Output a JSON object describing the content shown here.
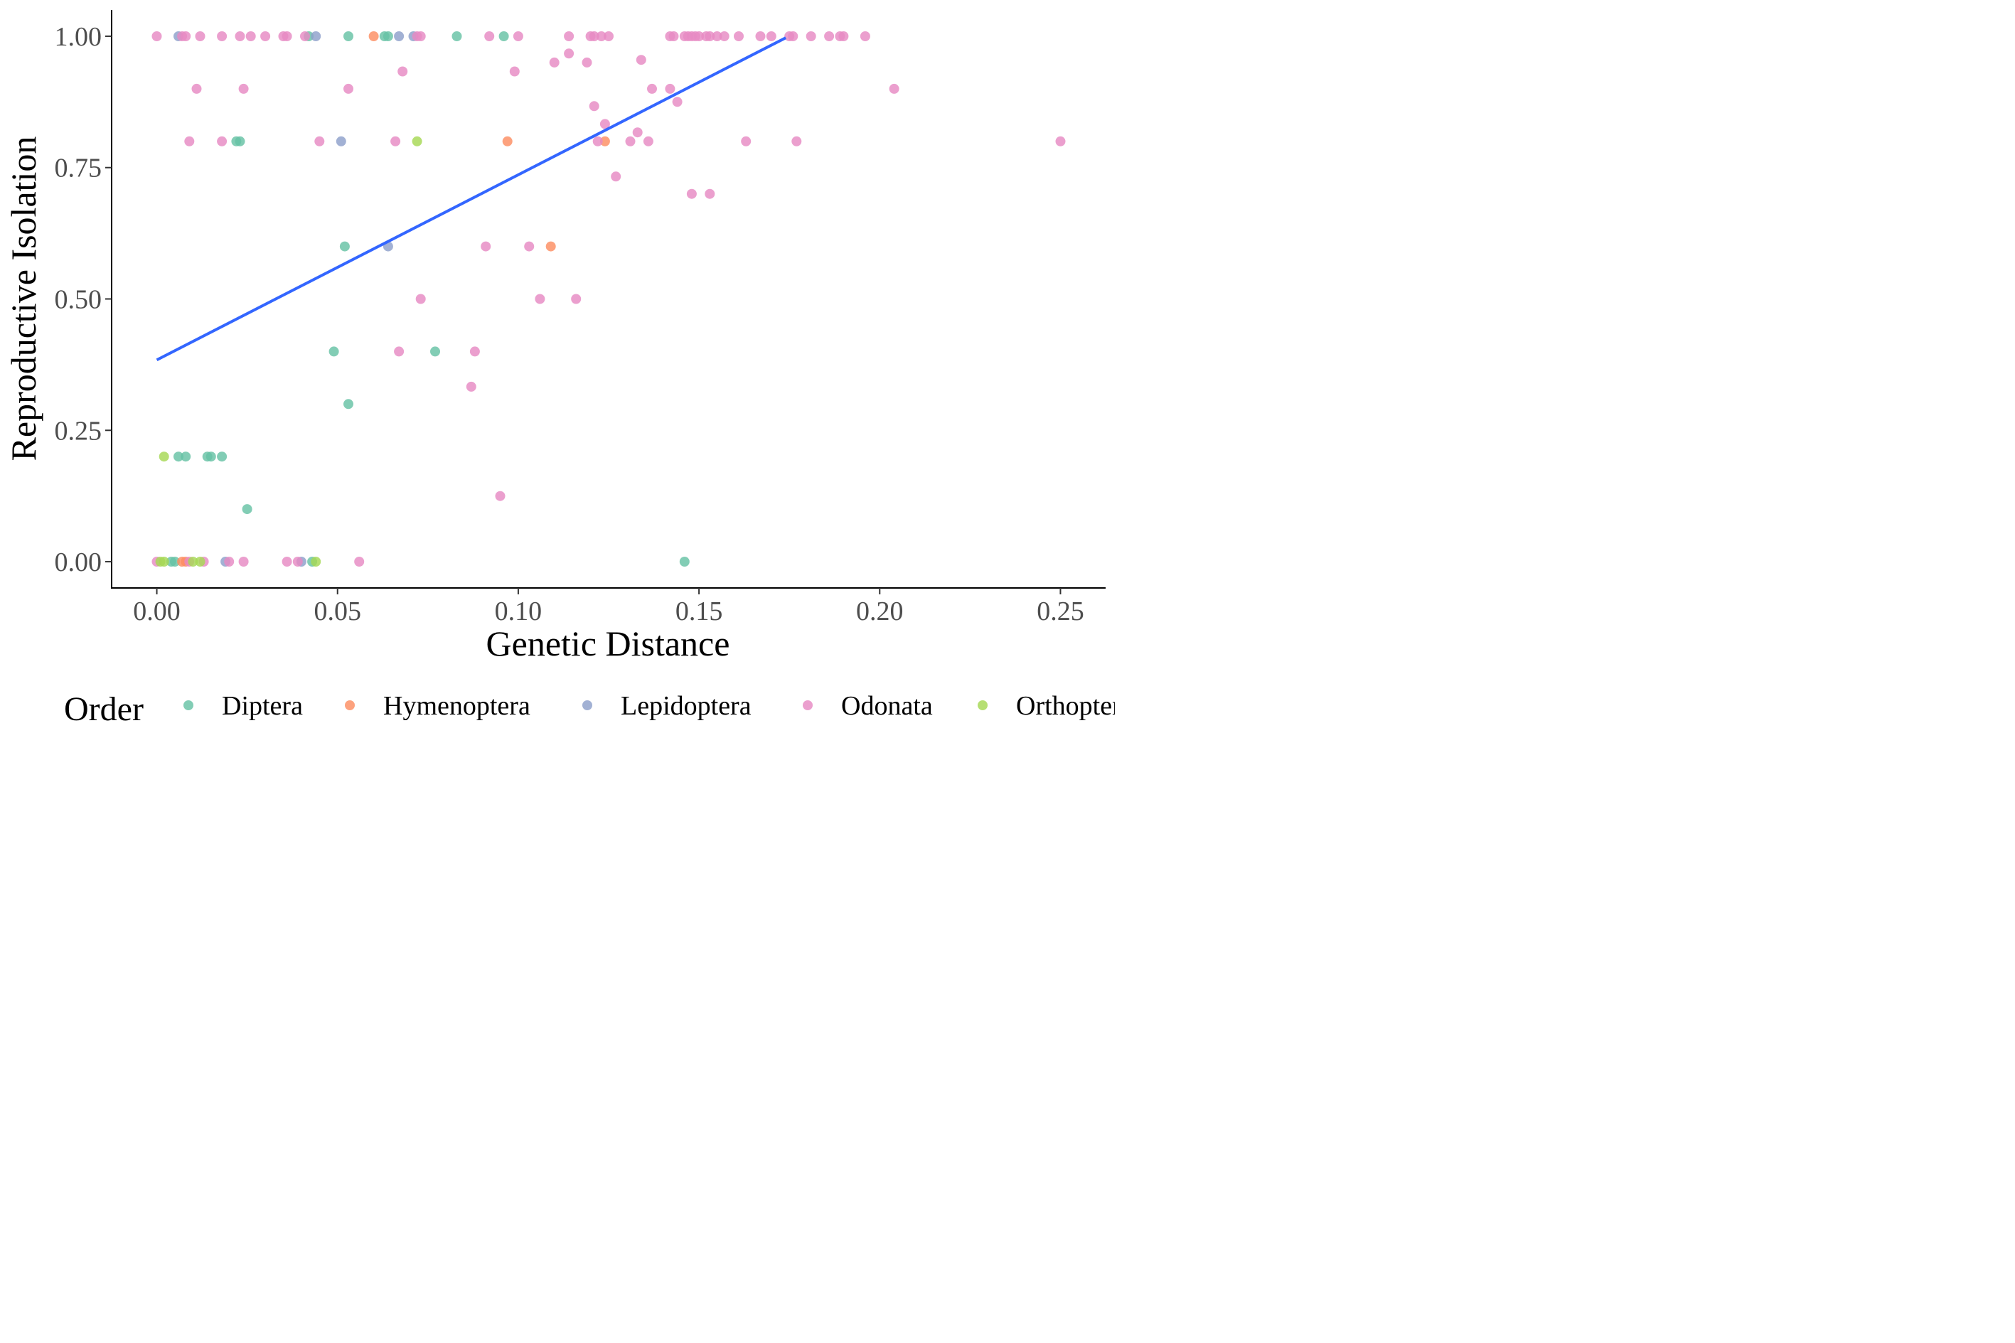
{
  "chart_data": {
    "type": "scatter",
    "xlabel": "Genetic Distance",
    "ylabel": "Reproductive Isolation",
    "xlim": [
      -0.0125,
      0.2625
    ],
    "ylim": [
      -0.05,
      1.05
    ],
    "x_ticks": [
      0.0,
      0.05,
      0.1,
      0.15,
      0.2,
      0.25
    ],
    "x_tick_labels": [
      "0.00",
      "0.05",
      "0.10",
      "0.15",
      "0.20",
      "0.25"
    ],
    "y_ticks": [
      0.0,
      0.25,
      0.5,
      0.75,
      1.0
    ],
    "y_tick_labels": [
      "0.00",
      "0.25",
      "0.50",
      "0.75",
      "1.00"
    ],
    "grid": false,
    "legend": {
      "title": "Order",
      "position": "bottom",
      "entries": [
        {
          "name": "Diptera",
          "color": "#66c2a5"
        },
        {
          "name": "Hymenoptera",
          "color": "#fc8d62"
        },
        {
          "name": "Lepidoptera",
          "color": "#8da0cb"
        },
        {
          "name": "Odonata",
          "color": "#e78ac3"
        },
        {
          "name": "Orthoptera",
          "color": "#a6d854"
        }
      ]
    },
    "trend_line": {
      "color": "#3366ff",
      "x": [
        0.0,
        0.174
      ],
      "y": [
        0.384,
        0.997
      ]
    },
    "series": [
      {
        "name": "Diptera",
        "color": "#66c2a5",
        "points": [
          [
            0.042,
            1.0
          ],
          [
            0.053,
            1.0
          ],
          [
            0.063,
            1.0
          ],
          [
            0.064,
            1.0
          ],
          [
            0.083,
            1.0
          ],
          [
            0.096,
            1.0
          ],
          [
            0.022,
            0.8
          ],
          [
            0.023,
            0.8
          ],
          [
            0.052,
            0.6
          ],
          [
            0.049,
            0.4
          ],
          [
            0.077,
            0.4
          ],
          [
            0.053,
            0.3
          ],
          [
            0.006,
            0.2
          ],
          [
            0.008,
            0.2
          ],
          [
            0.014,
            0.2
          ],
          [
            0.015,
            0.2
          ],
          [
            0.018,
            0.2
          ],
          [
            0.025,
            0.1
          ],
          [
            0.004,
            0.0
          ],
          [
            0.005,
            0.0
          ],
          [
            0.043,
            0.0
          ],
          [
            0.146,
            0.0
          ]
        ]
      },
      {
        "name": "Hymenoptera",
        "color": "#fc8d62",
        "points": [
          [
            0.06,
            1.0
          ],
          [
            0.097,
            0.8
          ],
          [
            0.124,
            0.8
          ],
          [
            0.109,
            0.6
          ],
          [
            0.007,
            0.0
          ],
          [
            0.008,
            0.0
          ]
        ]
      },
      {
        "name": "Lepidoptera",
        "color": "#8da0cb",
        "points": [
          [
            0.006,
            1.0
          ],
          [
            0.044,
            1.0
          ],
          [
            0.067,
            1.0
          ],
          [
            0.071,
            1.0
          ],
          [
            0.051,
            0.8
          ],
          [
            0.064,
            0.6
          ],
          [
            0.019,
            0.0
          ],
          [
            0.04,
            0.0
          ]
        ]
      },
      {
        "name": "Odonata",
        "color": "#e78ac3",
        "points": [
          [
            0.0,
            1.0
          ],
          [
            0.007,
            1.0
          ],
          [
            0.008,
            1.0
          ],
          [
            0.012,
            1.0
          ],
          [
            0.018,
            1.0
          ],
          [
            0.023,
            1.0
          ],
          [
            0.026,
            1.0
          ],
          [
            0.03,
            1.0
          ],
          [
            0.035,
            1.0
          ],
          [
            0.036,
            1.0
          ],
          [
            0.041,
            1.0
          ],
          [
            0.072,
            1.0
          ],
          [
            0.073,
            1.0
          ],
          [
            0.092,
            1.0
          ],
          [
            0.1,
            1.0
          ],
          [
            0.114,
            1.0
          ],
          [
            0.12,
            1.0
          ],
          [
            0.121,
            1.0
          ],
          [
            0.123,
            1.0
          ],
          [
            0.125,
            1.0
          ],
          [
            0.142,
            1.0
          ],
          [
            0.143,
            1.0
          ],
          [
            0.146,
            1.0
          ],
          [
            0.147,
            1.0
          ],
          [
            0.148,
            1.0
          ],
          [
            0.149,
            1.0
          ],
          [
            0.15,
            1.0
          ],
          [
            0.152,
            1.0
          ],
          [
            0.153,
            1.0
          ],
          [
            0.155,
            1.0
          ],
          [
            0.157,
            1.0
          ],
          [
            0.161,
            1.0
          ],
          [
            0.167,
            1.0
          ],
          [
            0.17,
            1.0
          ],
          [
            0.175,
            1.0
          ],
          [
            0.176,
            1.0
          ],
          [
            0.181,
            1.0
          ],
          [
            0.186,
            1.0
          ],
          [
            0.189,
            1.0
          ],
          [
            0.19,
            1.0
          ],
          [
            0.196,
            1.0
          ],
          [
            0.114,
            0.967
          ],
          [
            0.134,
            0.955
          ],
          [
            0.11,
            0.95
          ],
          [
            0.119,
            0.95
          ],
          [
            0.068,
            0.933
          ],
          [
            0.099,
            0.933
          ],
          [
            0.011,
            0.9
          ],
          [
            0.024,
            0.9
          ],
          [
            0.053,
            0.9
          ],
          [
            0.137,
            0.9
          ],
          [
            0.142,
            0.9
          ],
          [
            0.204,
            0.9
          ],
          [
            0.144,
            0.875
          ],
          [
            0.121,
            0.867
          ],
          [
            0.124,
            0.833
          ],
          [
            0.133,
            0.817
          ],
          [
            0.009,
            0.8
          ],
          [
            0.018,
            0.8
          ],
          [
            0.045,
            0.8
          ],
          [
            0.066,
            0.8
          ],
          [
            0.122,
            0.8
          ],
          [
            0.131,
            0.8
          ],
          [
            0.136,
            0.8
          ],
          [
            0.163,
            0.8
          ],
          [
            0.177,
            0.8
          ],
          [
            0.25,
            0.8
          ],
          [
            0.127,
            0.733
          ],
          [
            0.148,
            0.7
          ],
          [
            0.153,
            0.7
          ],
          [
            0.091,
            0.6
          ],
          [
            0.103,
            0.6
          ],
          [
            0.073,
            0.5
          ],
          [
            0.106,
            0.5
          ],
          [
            0.116,
            0.5
          ],
          [
            0.067,
            0.4
          ],
          [
            0.088,
            0.4
          ],
          [
            0.087,
            0.333
          ],
          [
            0.095,
            0.125
          ],
          [
            0.0,
            0.0
          ],
          [
            0.009,
            0.0
          ],
          [
            0.013,
            0.0
          ],
          [
            0.02,
            0.0
          ],
          [
            0.024,
            0.0
          ],
          [
            0.036,
            0.0
          ],
          [
            0.039,
            0.0
          ],
          [
            0.056,
            0.0
          ]
        ]
      },
      {
        "name": "Orthoptera",
        "color": "#a6d854",
        "points": [
          [
            0.072,
            0.8
          ],
          [
            0.002,
            0.2
          ],
          [
            0.001,
            0.0
          ],
          [
            0.002,
            0.0
          ],
          [
            0.01,
            0.0
          ],
          [
            0.012,
            0.0
          ],
          [
            0.044,
            0.0
          ]
        ]
      }
    ]
  }
}
